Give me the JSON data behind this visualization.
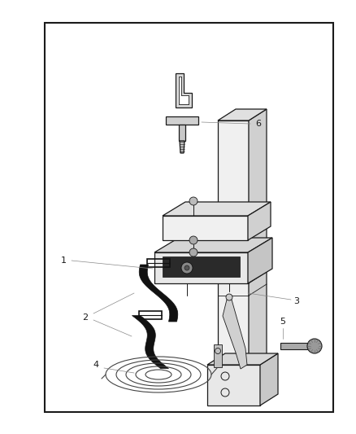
{
  "bg_color": "#ffffff",
  "border_color": "#1a1a1a",
  "line_color": "#1a1a1a",
  "gray_light": "#e0e0e0",
  "gray_mid": "#b8b8b8",
  "gray_dark": "#888888",
  "black_fill": "#111111",
  "fig_width": 4.38,
  "fig_height": 5.33,
  "dpi": 100
}
